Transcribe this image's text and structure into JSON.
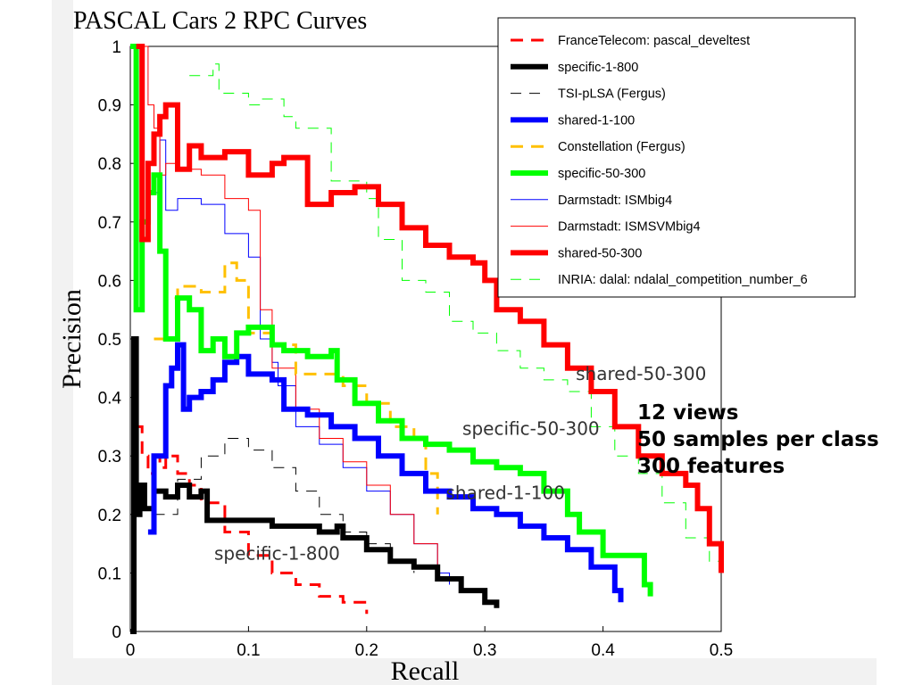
{
  "slide": {
    "notes": [
      "12 views",
      "50 samples per class",
      "300 features"
    ]
  },
  "chart_data": {
    "type": "line",
    "title": "PASCAL Cars 2  RPC Curves",
    "xlabel": "Recall",
    "ylabel": "Precision",
    "xlim": [
      0,
      0.5
    ],
    "ylim": [
      0,
      1
    ],
    "xticks": [
      "0",
      "0.1",
      "0.2",
      "0.3",
      "0.4",
      "0.5"
    ],
    "yticks": [
      "0",
      "0.1",
      "0.2",
      "0.3",
      "0.4",
      "0.5",
      "0.6",
      "0.7",
      "0.8",
      "0.9",
      "1"
    ],
    "grid": false,
    "legend_position": "top-right",
    "series": [
      {
        "name": "FranceTelecom: pascal_develtest",
        "color": "#ff0000",
        "style": "dashed",
        "weight": "thick",
        "x": [
          0.005,
          0.01,
          0.015,
          0.02,
          0.025,
          0.03,
          0.04,
          0.05,
          0.06,
          0.08,
          0.1,
          0.12,
          0.14,
          0.16,
          0.18,
          0.2
        ],
        "y": [
          0.35,
          0.3,
          0.27,
          0.3,
          0.28,
          0.3,
          0.27,
          0.25,
          0.22,
          0.17,
          0.13,
          0.1,
          0.08,
          0.06,
          0.05,
          0.03
        ]
      },
      {
        "name": "specific-1-800",
        "color": "#000000",
        "style": "solid",
        "weight": "heavy",
        "x": [
          0.0,
          0.003,
          0.005,
          0.008,
          0.012,
          0.02,
          0.03,
          0.04,
          0.05,
          0.06,
          0.065,
          0.08,
          0.1,
          0.12,
          0.14,
          0.16,
          0.175,
          0.18,
          0.2,
          0.22,
          0.24,
          0.26,
          0.28,
          0.3,
          0.31
        ],
        "y": [
          0.0,
          0.5,
          0.2,
          0.25,
          0.21,
          0.24,
          0.23,
          0.25,
          0.23,
          0.24,
          0.19,
          0.19,
          0.19,
          0.18,
          0.18,
          0.17,
          0.18,
          0.16,
          0.14,
          0.12,
          0.11,
          0.09,
          0.07,
          0.05,
          0.04
        ]
      },
      {
        "name": "TSI-pLSA (Fergus)",
        "color": "#000000",
        "style": "dashed",
        "weight": "thin",
        "x": [
          0.02,
          0.04,
          0.06,
          0.08,
          0.1,
          0.12,
          0.14,
          0.16,
          0.18,
          0.2,
          0.22,
          0.24
        ],
        "y": [
          0.2,
          0.26,
          0.3,
          0.33,
          0.31,
          0.28,
          0.24,
          0.2,
          0.17,
          0.15,
          0.12,
          0.1
        ]
      },
      {
        "name": "shared-1-100",
        "color": "#0000ff",
        "style": "solid",
        "weight": "heavy",
        "x": [
          0.015,
          0.02,
          0.03,
          0.035,
          0.04,
          0.045,
          0.05,
          0.06,
          0.07,
          0.08,
          0.09,
          0.1,
          0.12,
          0.13,
          0.15,
          0.17,
          0.19,
          0.21,
          0.23,
          0.25,
          0.27,
          0.29,
          0.31,
          0.33,
          0.35,
          0.37,
          0.39,
          0.41,
          0.415
        ],
        "y": [
          0.17,
          0.3,
          0.42,
          0.45,
          0.49,
          0.38,
          0.4,
          0.41,
          0.43,
          0.46,
          0.47,
          0.44,
          0.43,
          0.38,
          0.37,
          0.35,
          0.33,
          0.3,
          0.27,
          0.24,
          0.23,
          0.21,
          0.2,
          0.18,
          0.16,
          0.14,
          0.11,
          0.07,
          0.05
        ]
      },
      {
        "name": "Constellation (Fergus)",
        "color": "#ffc000",
        "style": "dashed",
        "weight": "thick",
        "x": [
          0.02,
          0.03,
          0.04,
          0.06,
          0.08,
          0.09,
          0.1,
          0.12,
          0.14,
          0.16,
          0.18,
          0.2,
          0.22,
          0.24,
          0.25,
          0.26
        ],
        "y": [
          0.5,
          0.57,
          0.59,
          0.58,
          0.63,
          0.6,
          0.51,
          0.49,
          0.44,
          0.44,
          0.42,
          0.39,
          0.35,
          0.33,
          0.27,
          0.2
        ]
      },
      {
        "name": "specific-50-300",
        "color": "#00ff00",
        "style": "solid",
        "weight": "heavy",
        "x": [
          0.0,
          0.005,
          0.01,
          0.015,
          0.02,
          0.025,
          0.03,
          0.04,
          0.05,
          0.06,
          0.07,
          0.08,
          0.09,
          0.1,
          0.12,
          0.13,
          0.15,
          0.17,
          0.175,
          0.19,
          0.21,
          0.23,
          0.25,
          0.27,
          0.29,
          0.31,
          0.33,
          0.35,
          0.37,
          0.38,
          0.4,
          0.42,
          0.435,
          0.44
        ],
        "y": [
          1.0,
          0.55,
          0.7,
          0.75,
          0.78,
          0.65,
          0.5,
          0.57,
          0.55,
          0.48,
          0.5,
          0.47,
          0.51,
          0.52,
          0.49,
          0.48,
          0.47,
          0.48,
          0.43,
          0.39,
          0.36,
          0.33,
          0.32,
          0.31,
          0.29,
          0.28,
          0.27,
          0.24,
          0.2,
          0.17,
          0.13,
          0.13,
          0.08,
          0.06
        ]
      },
      {
        "name": "Darmstadt: ISMbig4",
        "color": "#0000ff",
        "style": "solid",
        "weight": "thin",
        "x": [
          0.02,
          0.025,
          0.03,
          0.04,
          0.06,
          0.08,
          0.1,
          0.11,
          0.12,
          0.125,
          0.14,
          0.16,
          0.18,
          0.2,
          0.22,
          0.24,
          0.26,
          0.27
        ],
        "y": [
          0.75,
          0.84,
          0.72,
          0.74,
          0.73,
          0.68,
          0.64,
          0.5,
          0.46,
          0.42,
          0.35,
          0.32,
          0.28,
          0.24,
          0.2,
          0.15,
          0.1,
          0.08
        ]
      },
      {
        "name": "Darmstadt: ISMSVMbig4",
        "color": "#ff0000",
        "style": "solid",
        "weight": "thin",
        "x": [
          0.01,
          0.015,
          0.02,
          0.025,
          0.03,
          0.04,
          0.06,
          0.08,
          0.1,
          0.11,
          0.12,
          0.14,
          0.16,
          0.18,
          0.2,
          0.22,
          0.24,
          0.26
        ],
        "y": [
          1.0,
          0.9,
          0.86,
          0.78,
          0.8,
          0.79,
          0.78,
          0.74,
          0.72,
          0.55,
          0.45,
          0.38,
          0.33,
          0.29,
          0.25,
          0.2,
          0.15,
          0.1
        ]
      },
      {
        "name": "shared-50-300",
        "color": "#ff0000",
        "style": "solid",
        "weight": "heavy",
        "x": [
          0.005,
          0.01,
          0.015,
          0.02,
          0.025,
          0.03,
          0.04,
          0.05,
          0.06,
          0.08,
          0.1,
          0.12,
          0.13,
          0.15,
          0.17,
          0.19,
          0.21,
          0.23,
          0.25,
          0.27,
          0.29,
          0.3,
          0.31,
          0.33,
          0.35,
          0.37,
          0.39,
          0.41,
          0.43,
          0.45,
          0.47,
          0.48,
          0.49,
          0.5
        ],
        "y": [
          1.0,
          0.67,
          0.8,
          0.85,
          0.88,
          0.9,
          0.79,
          0.83,
          0.81,
          0.82,
          0.78,
          0.8,
          0.81,
          0.73,
          0.75,
          0.76,
          0.73,
          0.69,
          0.66,
          0.64,
          0.63,
          0.6,
          0.55,
          0.53,
          0.49,
          0.45,
          0.41,
          0.35,
          0.3,
          0.27,
          0.25,
          0.21,
          0.15,
          0.1
        ]
      },
      {
        "name": "INRIA: dalal: ndalal_competition_number_6",
        "color": "#00ff00",
        "style": "dashed",
        "weight": "thin",
        "x": [
          0.05,
          0.07,
          0.075,
          0.1,
          0.11,
          0.13,
          0.14,
          0.17,
          0.2,
          0.21,
          0.23,
          0.25,
          0.27,
          0.29,
          0.31,
          0.33,
          0.35,
          0.37,
          0.39,
          0.41,
          0.43,
          0.45,
          0.47,
          0.49,
          0.5
        ],
        "y": [
          0.95,
          0.97,
          0.92,
          0.9,
          0.91,
          0.88,
          0.86,
          0.77,
          0.74,
          0.67,
          0.6,
          0.58,
          0.53,
          0.51,
          0.48,
          0.45,
          0.43,
          0.41,
          0.35,
          0.3,
          0.27,
          0.22,
          0.16,
          0.12,
          0.1
        ]
      }
    ],
    "annotations": [
      {
        "text": "shared-50-300",
        "x": 0.377,
        "y": 0.43
      },
      {
        "text": "specific-50-300",
        "x": 0.281,
        "y": 0.336
      },
      {
        "text": "shared-1-100",
        "x": 0.267,
        "y": 0.226
      },
      {
        "text": "specific-1-800",
        "x": 0.071,
        "y": 0.123
      }
    ]
  }
}
